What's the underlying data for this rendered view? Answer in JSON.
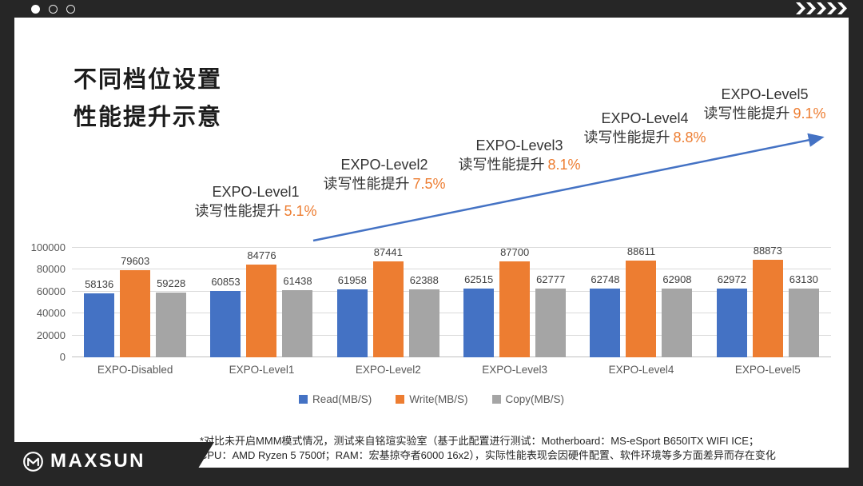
{
  "slide": {
    "title_line1": "不同档位设置",
    "title_line2": "性能提升示意"
  },
  "topbar": {
    "pagination_dots": "●○○",
    "chevrons_icon": "»»»»»"
  },
  "annotations": [
    {
      "label": "EXPO-Level1",
      "gain_prefix": "读写性能提升",
      "gain_pct": "5.1%"
    },
    {
      "label": "EXPO-Level2",
      "gain_prefix": "读写性能提升",
      "gain_pct": "7.5%"
    },
    {
      "label": "EXPO-Level3",
      "gain_prefix": "读写性能提升",
      "gain_pct": "8.1%"
    },
    {
      "label": "EXPO-Level4",
      "gain_prefix": "读写性能提升",
      "gain_pct": "8.8%"
    },
    {
      "label": "EXPO-Level5",
      "gain_prefix": "读写性能提升",
      "gain_pct": "9.1%"
    }
  ],
  "chart_data": {
    "type": "bar",
    "categories": [
      "EXPO-Disabled",
      "EXPO-Level1",
      "EXPO-Level2",
      "EXPO-Level3",
      "EXPO-Level4",
      "EXPO-Level5"
    ],
    "series": [
      {
        "name": "Read(MB/S)",
        "color": "#4472C4",
        "values": [
          58136,
          60853,
          61958,
          62515,
          62748,
          62972
        ]
      },
      {
        "name": "Write(MB/S)",
        "color": "#ED7D31",
        "values": [
          79603,
          84776,
          87441,
          87700,
          88611,
          88873
        ]
      },
      {
        "name": "Copy(MB/S)",
        "color": "#A5A5A5",
        "values": [
          59228,
          61438,
          62388,
          62777,
          62908,
          63130
        ]
      }
    ],
    "title": "",
    "xlabel": "",
    "ylabel": "",
    "ylim": [
      0,
      100000
    ],
    "yticks": [
      0,
      20000,
      40000,
      60000,
      80000,
      100000
    ],
    "grid": "horizontal",
    "legend_position": "bottom",
    "data_labels": true
  },
  "trend_arrow": {
    "color": "#4472C4"
  },
  "footnote": {
    "line1": "*对比未开启MMM模式情况，测试来自铭瑄实验室（基于此配置进行测试：Motherboard：MS-eSport B650ITX WIFI ICE；",
    "line2": "CPU：AMD Ryzen 5 7500f；RAM：宏基掠夺者6000 16x2），实际性能表现会因硬件配置、软件环境等多方面差异而存在变化"
  },
  "brand": {
    "logo_text": "MAXSUN"
  },
  "colors": {
    "frame_black": "#262626",
    "accent_blue": "#4472C4",
    "accent_orange": "#ED7D31",
    "bar_gray": "#A5A5A5"
  }
}
